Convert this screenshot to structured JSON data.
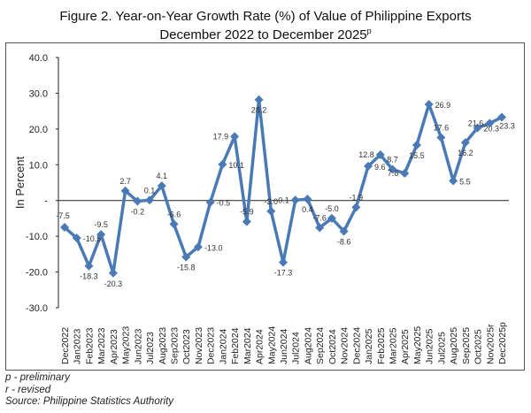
{
  "chart_data": {
    "type": "line",
    "title": "Figure 2. Year-on-Year Growth Rate (%) of Value of Philippine Exports",
    "subtitle": "December 2022 to December 2025",
    "subtitle_sup": "p",
    "ylabel": "In Percent",
    "xlabel": "",
    "ylim": [
      -30,
      40
    ],
    "yticks": [
      "-30.0",
      "-20.0",
      "-10.0",
      "-",
      "10.0",
      "20.0",
      "30.0",
      "40.0"
    ],
    "grid": false,
    "color": "#4a7ab5",
    "categories": [
      "Dec2022",
      "Jan2023",
      "Feb2023",
      "Mar2023",
      "Apr2023",
      "May2023",
      "Jun2023",
      "Jul2023",
      "Aug2023",
      "Sep2023",
      "Oct2023",
      "Nov2023",
      "Dec2023",
      "Jan2024",
      "Feb2024",
      "Mar2024",
      "Apr2024",
      "May2024",
      "Jun2024",
      "Jul2024",
      "Aug2024",
      "Sep2024",
      "Oct2024",
      "Nov2024",
      "Dec2024",
      "Jan2025",
      "Feb2025",
      "Mar2025",
      "Apr2025",
      "May2025",
      "Jun2025",
      "Jul2025",
      "Aug2025",
      "Sep2025",
      "Oct2025",
      "Nov2025r",
      "Dec2025p"
    ],
    "values": [
      -7.5,
      -10.5,
      -18.3,
      -9.5,
      -20.3,
      2.7,
      -0.2,
      0.1,
      4.1,
      -6.6,
      -15.8,
      -13.0,
      -0.5,
      10.1,
      17.9,
      -5.9,
      28.2,
      -3.0,
      -17.3,
      0.1,
      0.4,
      -7.6,
      -5.0,
      -8.6,
      -1.9,
      9.6,
      12.8,
      8.7,
      7.6,
      15.5,
      26.9,
      17.6,
      5.5,
      16.2,
      20.3,
      21.6,
      23.3
    ]
  },
  "notes": {
    "p": "p - preliminary",
    "r": "r - revised",
    "source": "Source: Philippine Statistics Authority"
  }
}
